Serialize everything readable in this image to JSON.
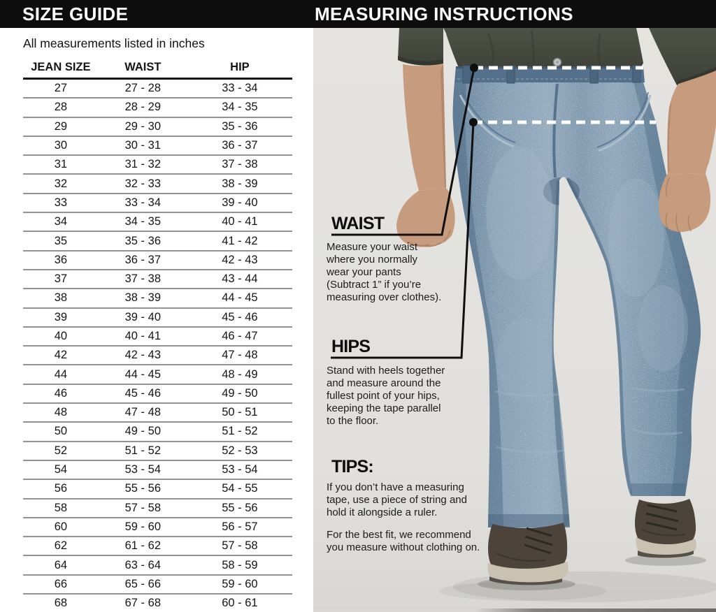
{
  "header": {
    "left_title": "SIZE GUIDE",
    "right_title": "MEASURING INSTRUCTIONS"
  },
  "size_guide": {
    "note": "All measurements listed in inches",
    "columns": [
      "JEAN SIZE",
      "WAIST",
      "HIP"
    ],
    "rows": [
      [
        "27",
        "27 - 28",
        "33 - 34"
      ],
      [
        "28",
        "28 - 29",
        "34 - 35"
      ],
      [
        "29",
        "29 - 30",
        "35 - 36"
      ],
      [
        "30",
        "30 - 31",
        "36 - 37"
      ],
      [
        "31",
        "31 - 32",
        "37 - 38"
      ],
      [
        "32",
        "32 - 33",
        "38 - 39"
      ],
      [
        "33",
        "33 - 34",
        "39 - 40"
      ],
      [
        "34",
        "34 - 35",
        "40 - 41"
      ],
      [
        "35",
        "35 - 36",
        "41 - 42"
      ],
      [
        "36",
        "36 - 37",
        "42 - 43"
      ],
      [
        "37",
        "37 - 38",
        "43 - 44"
      ],
      [
        "38",
        "38 - 39",
        "44 - 45"
      ],
      [
        "39",
        "39 - 40",
        "45 - 46"
      ],
      [
        "40",
        "40 - 41",
        "46 - 47"
      ],
      [
        "42",
        "42 - 43",
        "47 - 48"
      ],
      [
        "44",
        "44 - 45",
        "48 - 49"
      ],
      [
        "46",
        "45 - 46",
        "49 - 50"
      ],
      [
        "48",
        "47 - 48",
        "50 - 51"
      ],
      [
        "50",
        "49 - 50",
        "51 - 52"
      ],
      [
        "52",
        "51 - 52",
        "52 - 53"
      ],
      [
        "54",
        "53 - 54",
        "53 - 54"
      ],
      [
        "56",
        "55 - 56",
        "54 - 55"
      ],
      [
        "58",
        "57 - 58",
        "55 - 56"
      ],
      [
        "60",
        "59 - 60",
        "56 - 57"
      ],
      [
        "62",
        "61 - 62",
        "57 - 58"
      ],
      [
        "64",
        "63 - 64",
        "58 - 59"
      ],
      [
        "66",
        "65 - 66",
        "59 - 60"
      ],
      [
        "68",
        "67 - 68",
        "60 - 61"
      ]
    ]
  },
  "instructions": {
    "waist": {
      "heading": "WAIST",
      "body": "Measure your waist\nwhere you normally\nwear your pants\n(Subtract 1” if you’re\nmeasuring over clothes)."
    },
    "hips": {
      "heading": "HIPS",
      "body": "Stand with heels together\nand measure around the\nfullest point of your hips,\nkeeping the tape parallel\nto the floor."
    },
    "tips": {
      "heading": "TIPS:",
      "paragraphs": [
        "If you don’t have a measuring\ntape, use a piece of string and\nhold it alongside a ruler.",
        "For the best fit, we recommend\nyou measure without clothing on."
      ]
    }
  },
  "figure": {
    "description": "Man wearing relaxed-fit blue jeans with white dashed waist and hip measurement lines",
    "markers": [
      "waist-line",
      "hip-line"
    ]
  },
  "colors": {
    "header_bar": "#0d0d0d",
    "panel_bg": "#e2e1de",
    "denim": "#7e99af",
    "shirt": "#474c41",
    "text": "#1c1c1c",
    "marker_white": "#ffffff",
    "callout_black": "#0f0f0f"
  }
}
